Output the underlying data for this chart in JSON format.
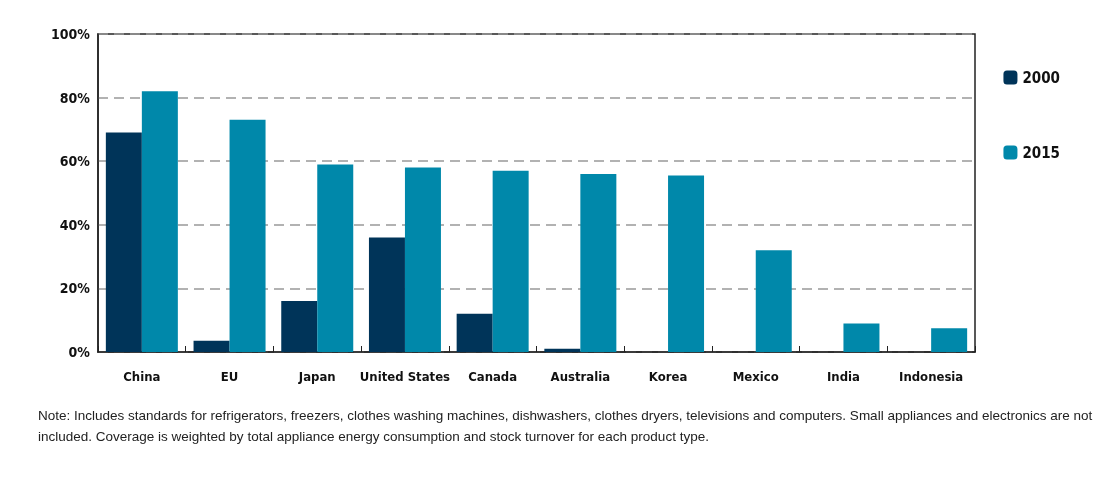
{
  "chart_data": {
    "type": "bar",
    "categories": [
      "China",
      "EU",
      "Japan",
      "United States",
      "Canada",
      "Australia",
      "Korea",
      "Mexico",
      "India",
      "Indonesia"
    ],
    "series": [
      {
        "name": "2000",
        "color": "#003459",
        "values": [
          69,
          3.5,
          16,
          36,
          12,
          1,
          0,
          0,
          0,
          0
        ]
      },
      {
        "name": "2015",
        "color": "#0088aa",
        "values": [
          82,
          73,
          59,
          58,
          57,
          56,
          55.5,
          32,
          9,
          7.5
        ]
      }
    ],
    "ylim": [
      0,
      100
    ],
    "yticks": [
      {
        "value": 0,
        "label": "0%"
      },
      {
        "value": 20,
        "label": "20%"
      },
      {
        "value": 40,
        "label": "40%"
      },
      {
        "value": 60,
        "label": "60%"
      },
      {
        "value": 80,
        "label": "80%"
      },
      {
        "value": 100,
        "label": "100%"
      }
    ],
    "grid": "y",
    "line_style": "dashed",
    "legend": "right",
    "annotations": [
      "Note: Includes standards for refrigerators, freezers, clothes washing machines, dishwashers, clothes dryers, televisions and computers. Small appliances and electronics are not included. Coverage is weighted by total appliance energy consumption and stock turnover for each product type."
    ]
  }
}
